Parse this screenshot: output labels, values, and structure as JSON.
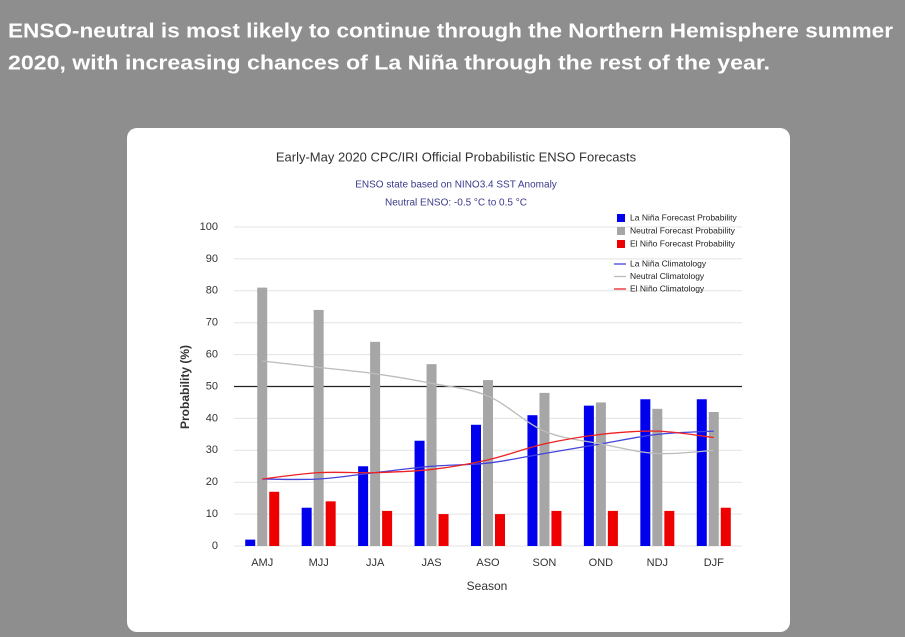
{
  "slide_title": [
    "ENSO-neutral is most likely to continue through the Northern Hemisphere summer",
    "2020, with increasing chances of La Niña through the rest of the year."
  ],
  "chart_data": {
    "type": "bar",
    "title": "Early-May 2020 CPC/IRI Official Probabilistic ENSO Forecasts",
    "subtitle": [
      "ENSO state based on NINO3.4 SST Anomaly",
      "Neutral ENSO: -0.5 °C to 0.5 °C"
    ],
    "x_label": "Season",
    "y_label": "Probability (%)",
    "categories": [
      "AMJ",
      "MJJ",
      "JJA",
      "JAS",
      "ASO",
      "SON",
      "OND",
      "NDJ",
      "DJF"
    ],
    "series": [
      {
        "name": "La Niña Forecast Probability",
        "type": "bar",
        "color": "#0000ee",
        "values": [
          2,
          12,
          25,
          33,
          38,
          41,
          44,
          46,
          46
        ]
      },
      {
        "name": "Neutral Forecast Probability",
        "type": "bar",
        "color": "#a6a6a6",
        "values": [
          81,
          74,
          64,
          57,
          52,
          48,
          45,
          43,
          42
        ]
      },
      {
        "name": "El Niño Forecast Probability",
        "type": "bar",
        "color": "#ee0000",
        "values": [
          17,
          14,
          11,
          10,
          10,
          11,
          11,
          11,
          12
        ]
      },
      {
        "name": "La Niña Climatology",
        "type": "line",
        "color": "#4444dd",
        "values": [
          21,
          21,
          23,
          25,
          26,
          29,
          32,
          35,
          36
        ]
      },
      {
        "name": "Neutral Climatology",
        "type": "line",
        "color": "#bbbbbb",
        "values": [
          58,
          56,
          54,
          51,
          47,
          36,
          32,
          29,
          30
        ]
      },
      {
        "name": "El Niño Climatology",
        "type": "line",
        "color": "#ee2222",
        "values": [
          21,
          23,
          23,
          24,
          27,
          32,
          35,
          36,
          34
        ]
      }
    ],
    "ylim": [
      0,
      100
    ],
    "yticks": [
      0,
      10,
      20,
      30,
      40,
      50,
      60,
      70,
      80,
      90,
      100
    ],
    "reference_line": 50,
    "grid": true
  }
}
